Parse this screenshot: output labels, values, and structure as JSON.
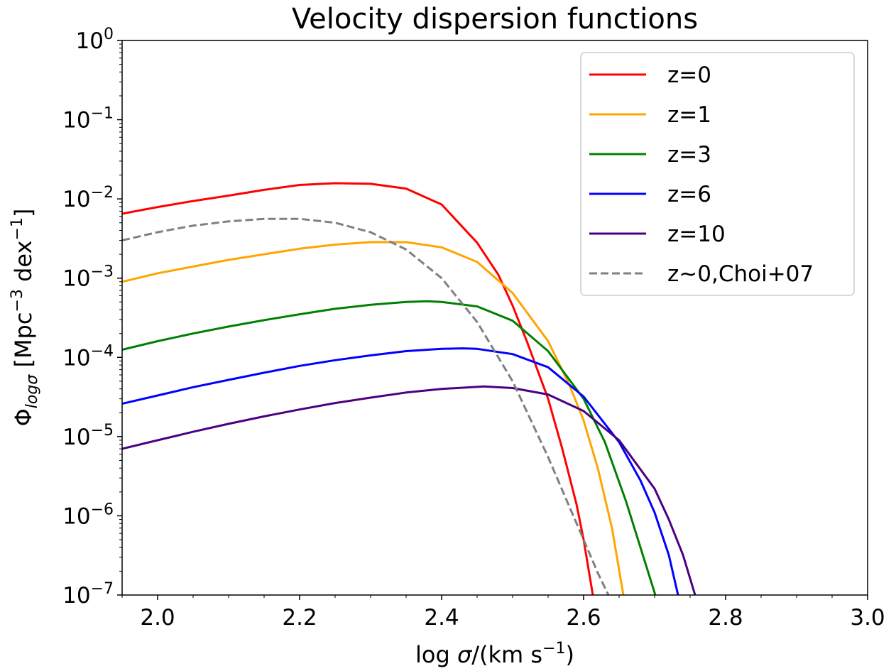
{
  "chart_data": {
    "type": "line",
    "title": "Velocity dispersion functions",
    "xlabel": "log σ/(km s⁻¹)",
    "ylabel": "Φlogσ [Mpc⁻³ dex⁻¹]",
    "xlim": [
      1.95,
      3.0
    ],
    "ylim": [
      1e-07,
      1
    ],
    "yscale": "log",
    "grid": false,
    "legend_position": "top-right",
    "x_ticks": [
      2.0,
      2.2,
      2.4,
      2.6,
      2.8,
      3.0
    ],
    "x_tick_labels": [
      "2.0",
      "2.2",
      "2.4",
      "2.6",
      "2.8",
      "3.0"
    ],
    "y_ticks_exponents": [
      0,
      -1,
      -2,
      -3,
      -4,
      -5,
      -6,
      -7
    ],
    "series": [
      {
        "name": "z=0",
        "color": "#ff0000",
        "dash": "solid",
        "x": [
          1.95,
          2.0,
          2.05,
          2.1,
          2.15,
          2.2,
          2.25,
          2.3,
          2.35,
          2.4,
          2.45,
          2.48,
          2.5,
          2.52,
          2.55,
          2.57,
          2.59,
          2.6,
          2.613
        ],
        "y": [
          0.0065,
          0.0079,
          0.0094,
          0.011,
          0.013,
          0.015,
          0.0158,
          0.0155,
          0.0135,
          0.0085,
          0.0028,
          0.0011,
          0.00045,
          0.00016,
          3e-05,
          7e-06,
          1.4e-06,
          5e-07,
          1e-07
        ]
      },
      {
        "name": "z=1",
        "color": "#ffa500",
        "dash": "solid",
        "x": [
          1.95,
          2.0,
          2.05,
          2.1,
          2.15,
          2.2,
          2.25,
          2.3,
          2.35,
          2.4,
          2.45,
          2.5,
          2.55,
          2.58,
          2.6,
          2.62,
          2.64,
          2.656
        ],
        "y": [
          0.0009,
          0.00115,
          0.0014,
          0.0017,
          0.002,
          0.00235,
          0.00265,
          0.00285,
          0.00285,
          0.00245,
          0.0016,
          0.00065,
          0.00016,
          4.5e-05,
          1.6e-05,
          4e-06,
          7e-07,
          1e-07
        ]
      },
      {
        "name": "z=3",
        "color": "#008000",
        "dash": "solid",
        "x": [
          1.95,
          2.0,
          2.05,
          2.1,
          2.15,
          2.2,
          2.25,
          2.3,
          2.35,
          2.38,
          2.4,
          2.45,
          2.5,
          2.55,
          2.6,
          2.63,
          2.66,
          2.68,
          2.701
        ],
        "y": [
          0.000125,
          0.00016,
          0.0002,
          0.000245,
          0.000295,
          0.00035,
          0.00041,
          0.00046,
          0.0005,
          0.00051,
          0.0005,
          0.00044,
          0.00029,
          0.00012,
          3e-05,
          8.5e-06,
          1.5e-06,
          4e-07,
          1e-07
        ]
      },
      {
        "name": "z=6",
        "color": "#0000ff",
        "dash": "solid",
        "x": [
          1.95,
          2.0,
          2.05,
          2.1,
          2.15,
          2.2,
          2.25,
          2.3,
          2.35,
          2.4,
          2.43,
          2.45,
          2.5,
          2.55,
          2.6,
          2.65,
          2.68,
          2.7,
          2.72,
          2.733
        ],
        "y": [
          2.6e-05,
          3.3e-05,
          4.2e-05,
          5.2e-05,
          6.4e-05,
          7.8e-05,
          9.2e-05,
          0.000106,
          0.00012,
          0.000128,
          0.00013,
          0.000128,
          0.00011,
          7.5e-05,
          3.2e-05,
          8.5e-06,
          2.8e-06,
          1.1e-06,
          3.2e-07,
          1e-07
        ]
      },
      {
        "name": "z=10",
        "color": "#4b0082",
        "dash": "solid",
        "x": [
          1.95,
          2.0,
          2.05,
          2.1,
          2.15,
          2.2,
          2.25,
          2.3,
          2.35,
          2.4,
          2.46,
          2.5,
          2.55,
          2.6,
          2.65,
          2.7,
          2.72,
          2.74,
          2.757
        ],
        "y": [
          7e-06,
          9e-06,
          1.15e-05,
          1.45e-05,
          1.8e-05,
          2.2e-05,
          2.65e-05,
          3.1e-05,
          3.6e-05,
          4e-05,
          4.3e-05,
          4.1e-05,
          3.4e-05,
          2.1e-05,
          9e-06,
          2.2e-06,
          9e-07,
          3.2e-07,
          1e-07
        ]
      },
      {
        "name": "z~0,Choi+07",
        "color": "#808080",
        "dash": "dashed",
        "x": [
          1.95,
          2.0,
          2.05,
          2.1,
          2.15,
          2.2,
          2.25,
          2.3,
          2.35,
          2.4,
          2.45,
          2.5,
          2.55,
          2.58,
          2.6,
          2.62,
          2.635
        ],
        "y": [
          0.003,
          0.0038,
          0.0046,
          0.0052,
          0.0056,
          0.0056,
          0.005,
          0.0038,
          0.0023,
          0.001,
          0.00028,
          5e-05,
          5.5e-06,
          1.3e-06,
          5e-07,
          1.9e-07,
          1e-07
        ]
      }
    ]
  }
}
